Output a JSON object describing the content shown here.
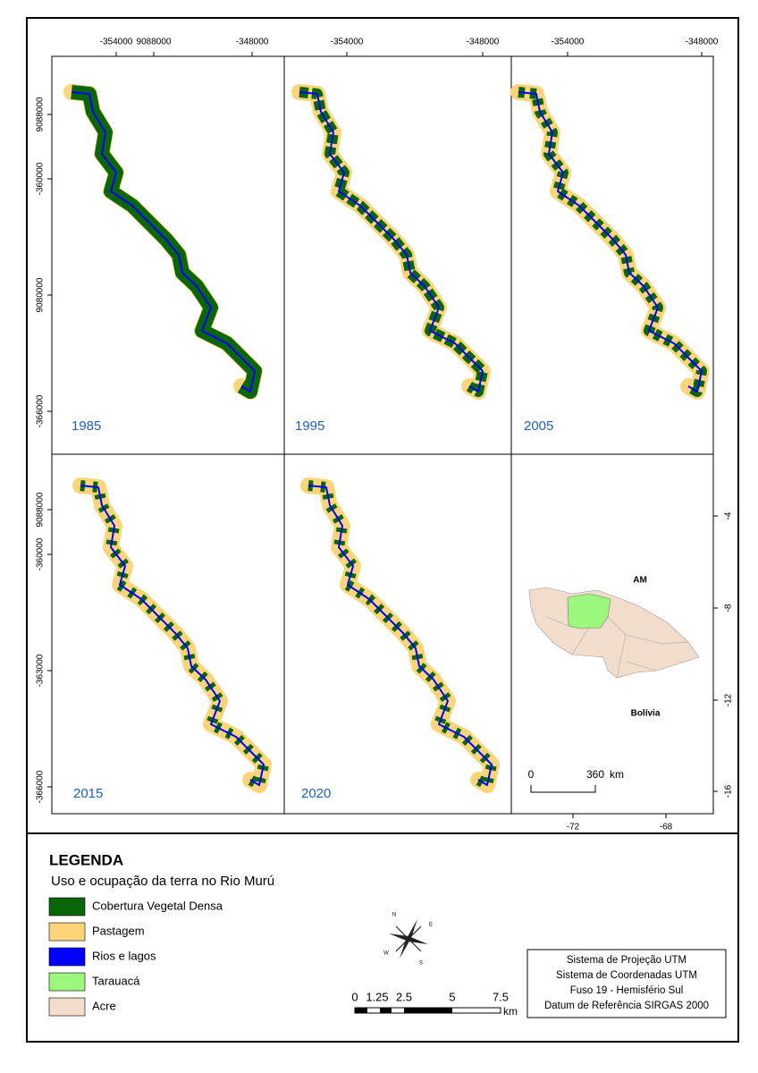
{
  "panels": [
    {
      "year": "1985",
      "top_labels": [
        "-354000",
        "9088000",
        "-348000"
      ],
      "left_labels": [
        "9088000",
        "-360000",
        "9080000",
        "-366000"
      ]
    },
    {
      "year": "1995",
      "top_labels": [
        "-354000",
        "-348000"
      ]
    },
    {
      "year": "2005",
      "top_labels": [
        "-354000",
        "-348000"
      ]
    },
    {
      "year": "2015",
      "left_labels": [
        "9088000",
        "-360000",
        "-363000",
        "-366000"
      ]
    },
    {
      "year": "2020"
    }
  ],
  "inset": {
    "region_labels": [
      "AM",
      "Bolívia"
    ],
    "lat_labels": [
      "-4",
      "-8",
      "-12",
      "-16"
    ],
    "lon_labels": [
      "-72",
      "-68"
    ],
    "scale_labels": [
      "0",
      "360",
      "km"
    ]
  },
  "legend": {
    "title": "LEGENDA",
    "subtitle": "Uso e ocupação da terra no Rio Murú",
    "items": [
      {
        "label": "Cobertura Vegetal Densa",
        "color": "#0b660b"
      },
      {
        "label": "Pastagem",
        "color": "#fcd47a"
      },
      {
        "label": "Rios e lagos",
        "color": "#0000ff"
      },
      {
        "label": "Tarauacá",
        "color": "#9cf87c"
      },
      {
        "label": "Acre",
        "color": "#f2dccb"
      }
    ]
  },
  "compass": [
    "N",
    "E",
    "S",
    "W"
  ],
  "scale_bar": {
    "labels": [
      "0",
      "1.25",
      "2.5",
      "5",
      "7.5"
    ],
    "unit": "km"
  },
  "info_box": [
    "Sistema de Projeção UTM",
    "Sistema de Coordenadas UTM",
    "Fuso 19 - Hemisfério Sul",
    "Datum de Referência SIRGAS 2000"
  ]
}
